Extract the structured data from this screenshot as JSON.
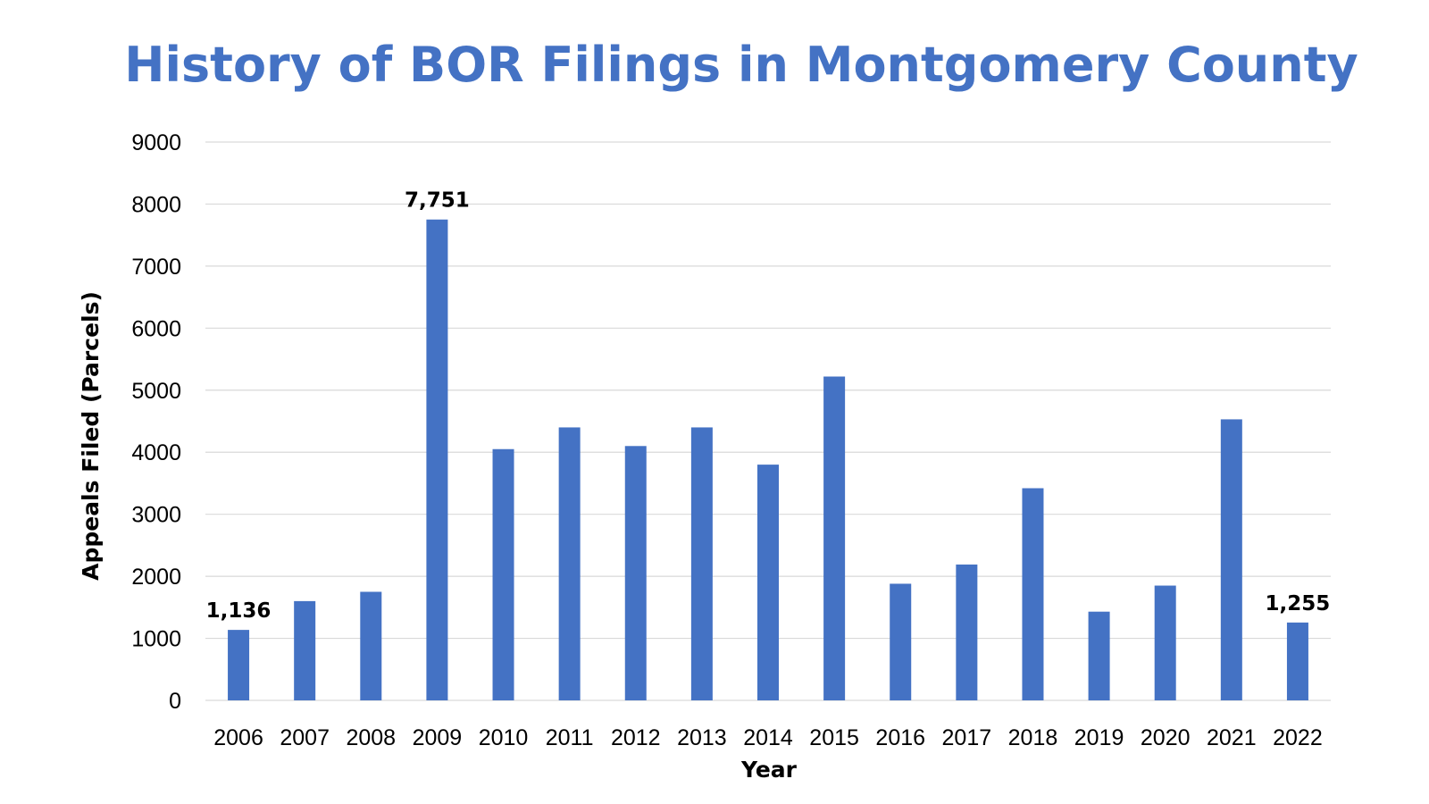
{
  "chart_data": {
    "type": "bar",
    "title": "History of BOR Filings in Montgomery County",
    "xlabel": "Year",
    "ylabel": "Appeals Filed (Parcels)",
    "categories": [
      "2006",
      "2007",
      "2008",
      "2009",
      "2010",
      "2011",
      "2012",
      "2013",
      "2014",
      "2015",
      "2016",
      "2017",
      "2018",
      "2019",
      "2020",
      "2021",
      "2022"
    ],
    "series": [
      {
        "values": [
          1136,
          1600,
          1750,
          7751,
          4050,
          4400,
          4100,
          4400,
          3800,
          5220,
          1880,
          2190,
          3420,
          1430,
          1850,
          4530,
          1255
        ]
      }
    ],
    "data_labels": [
      {
        "category": "2006",
        "text": "1,136"
      },
      {
        "category": "2009",
        "text": "7,751"
      },
      {
        "category": "2022",
        "text": "1,255"
      }
    ],
    "ylim": [
      0,
      9000
    ],
    "yticks": [
      "0",
      "1000",
      "2000",
      "3000",
      "4000",
      "5000",
      "6000",
      "7000",
      "8000",
      "9000"
    ],
    "ytick_values": [
      0,
      1000,
      2000,
      3000,
      4000,
      5000,
      6000,
      7000,
      8000,
      9000
    ],
    "grid": true,
    "legend": "none",
    "colors": {
      "bar": "#4472C4",
      "title": "#4472C4",
      "grid": "#D9D9D9",
      "text": "#000000"
    }
  }
}
